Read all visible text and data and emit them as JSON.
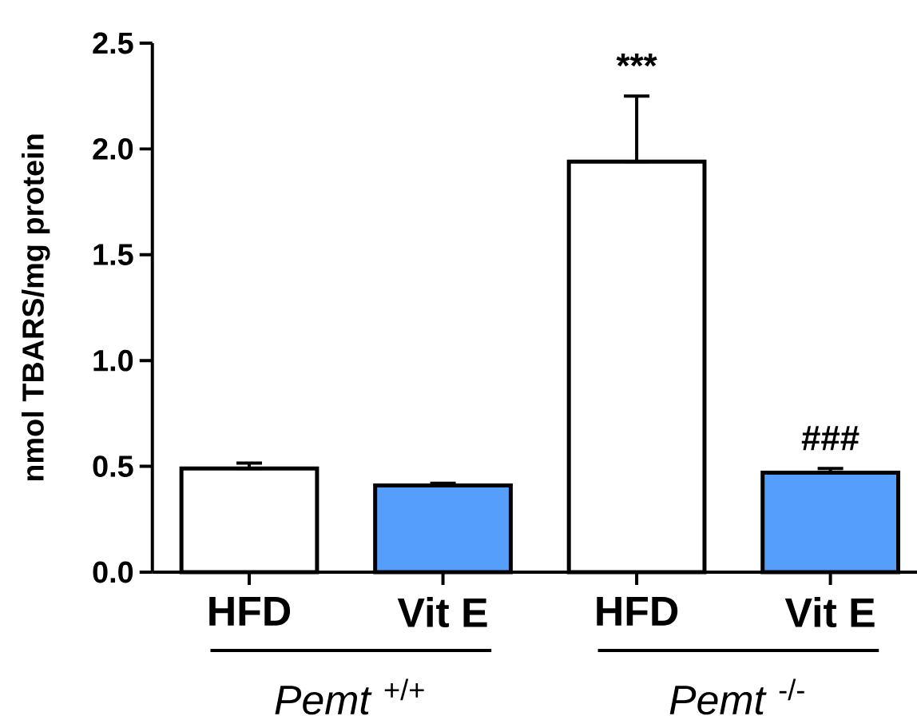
{
  "chart_data": {
    "type": "bar",
    "ylabel": "nmol TBARS/mg protein",
    "categories": [
      "HFD",
      "Vit E",
      "HFD",
      "Vit E"
    ],
    "values": [
      0.49,
      0.41,
      1.94,
      0.47
    ],
    "colors": [
      "#ffffff",
      "#559ef9",
      "#ffffff",
      "#559ef9"
    ],
    "errors": [
      [
        0.49,
        0.515
      ],
      [
        0.41,
        0.42
      ],
      [
        1.94,
        2.25
      ],
      [
        0.47,
        0.49
      ]
    ],
    "ylim": [
      0,
      2.5
    ],
    "yticks": [
      {
        "value": 0,
        "label": "0.0"
      },
      {
        "value": 0.5,
        "label": "0.5"
      },
      {
        "value": 1,
        "label": "1.0"
      },
      {
        "value": 1.5,
        "label": "1.5"
      },
      {
        "value": 2,
        "label": "2.0"
      },
      {
        "value": 2.5,
        "label": "2.5"
      }
    ],
    "grid": false,
    "annotations": [
      "***",
      "###",
      "*Pemt* $^{+/+}$",
      "*Pemt* $^{-/-}$"
    ]
  }
}
